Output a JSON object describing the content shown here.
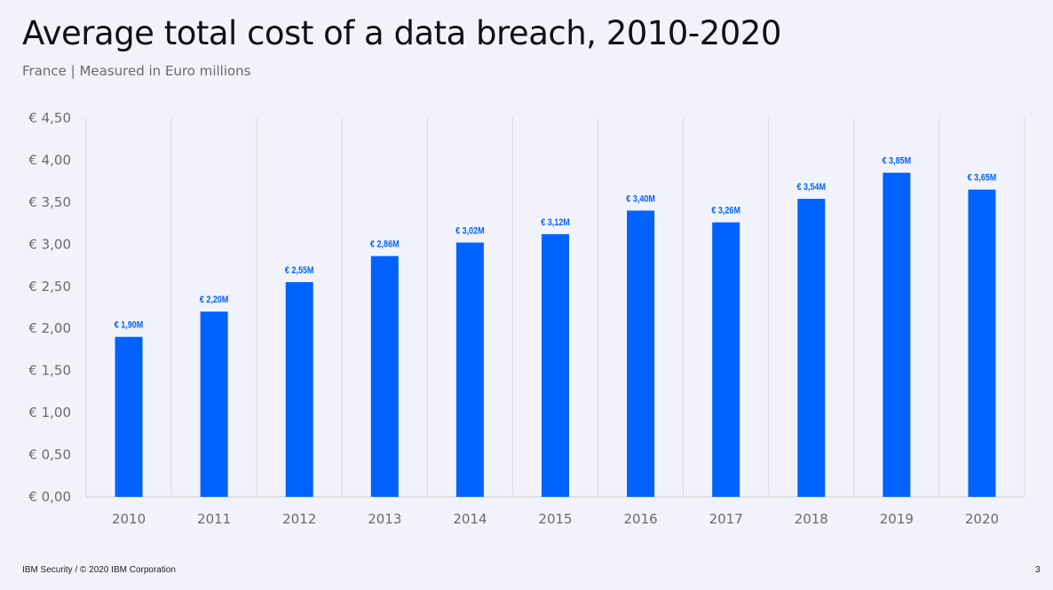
{
  "title": "Average total cost of a data breach, 2010-2020",
  "subtitle": "France | Measured in Euro millions",
  "footer": "IBM Security / © 2020 IBM Corporation",
  "page_number": "3",
  "colors": {
    "bar": "#0062ff",
    "label": "#0062ff",
    "grid": "#d9d9e0",
    "axis_text": "#6b6b6b"
  },
  "chart_data": {
    "type": "bar",
    "title": "Average total cost of a data breach, 2010-2020",
    "subtitle": "France | Measured in Euro millions",
    "xlabel": "",
    "ylabel": "",
    "categories": [
      "2010",
      "2011",
      "2012",
      "2013",
      "2014",
      "2015",
      "2016",
      "2017",
      "2018",
      "2019",
      "2020"
    ],
    "values": [
      1.9,
      2.2,
      2.55,
      2.86,
      3.02,
      3.12,
      3.4,
      3.26,
      3.54,
      3.85,
      3.65
    ],
    "data_labels": [
      "€ 1,90M",
      "€ 2,20M",
      "€ 2,55M",
      "€ 2,86M",
      "€ 3,02M",
      "€ 3,12M",
      "€ 3,40M",
      "€ 3,26M",
      "€ 3,54M",
      "€ 3,85M",
      "€ 3,65M"
    ],
    "ylim": [
      0,
      4.5
    ],
    "yticks": [
      0,
      0.5,
      1.0,
      1.5,
      2.0,
      2.5,
      3.0,
      3.5,
      4.0,
      4.5
    ],
    "ytick_labels": [
      "€ 0,00",
      "€ 0,50",
      "€ 1,00",
      "€ 1,50",
      "€ 2,00",
      "€ 2,50",
      "€ 3,00",
      "€ 3,50",
      "€ 4,00",
      "€ 4,50"
    ],
    "grid": "vertical category separators",
    "legend": "none"
  }
}
